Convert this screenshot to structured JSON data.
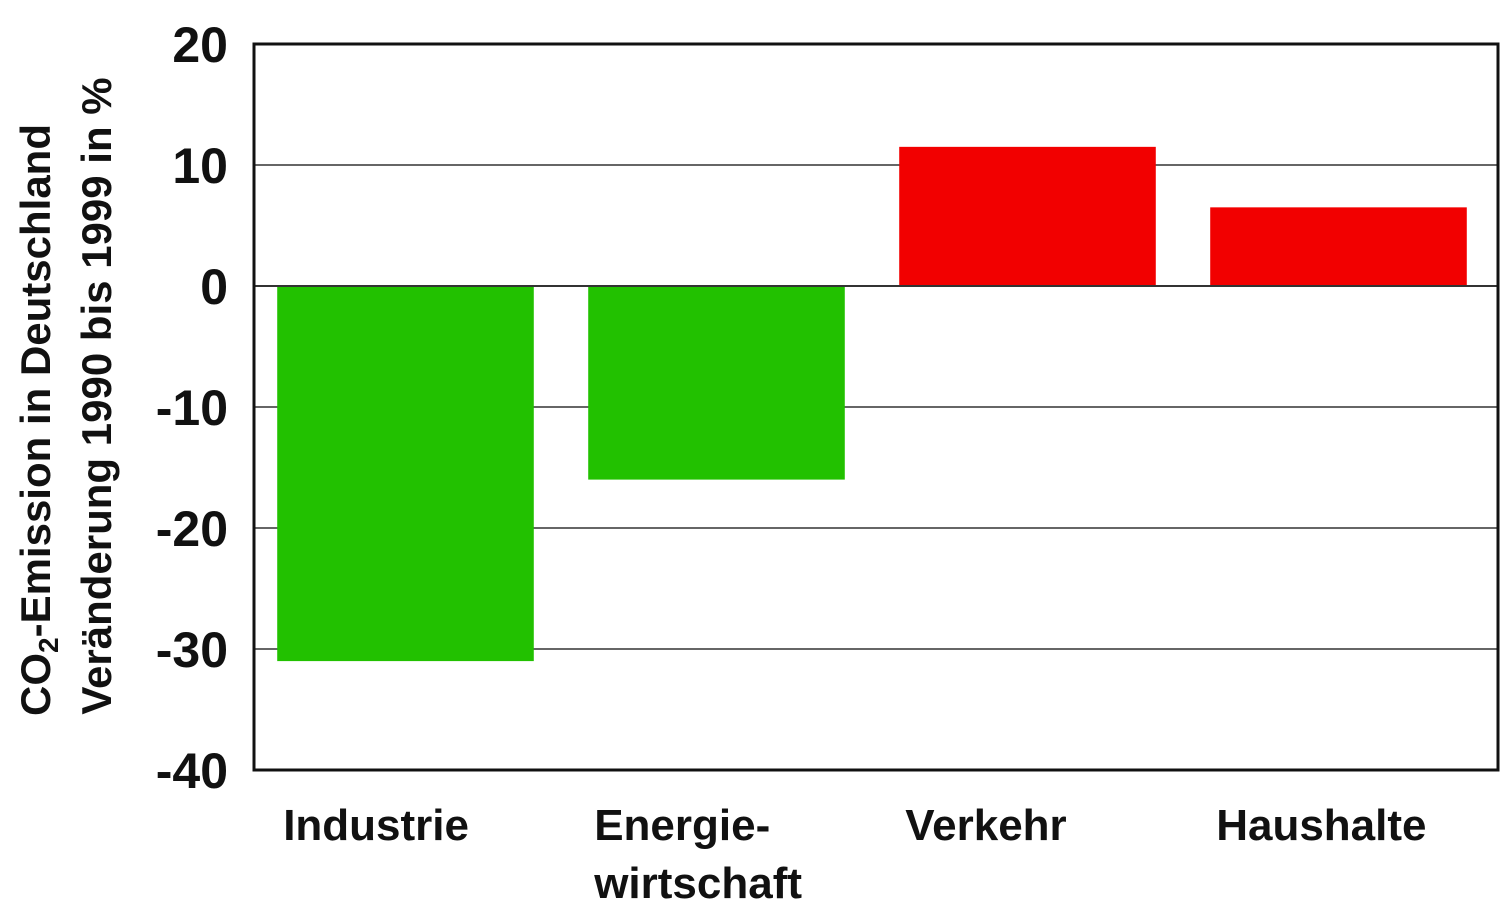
{
  "chart_data": {
    "type": "bar",
    "title": "",
    "ylabel": {
      "line1_prefix": "CO",
      "line1_subscript": "2",
      "line1_suffix": "-Emission in Deutschland",
      "line2": "Veränderung 1990 bis 1999 in %"
    },
    "xlabel": "",
    "ylim": [
      -40,
      20
    ],
    "yticks": [
      20,
      10,
      0,
      -10,
      -20,
      -30,
      -40
    ],
    "grid": true,
    "categories": [
      [
        "Industrie"
      ],
      [
        "Energie-",
        "wirtschaft"
      ],
      [
        "Verkehr"
      ],
      [
        "Haushalte"
      ]
    ],
    "values": [
      -31,
      -16,
      11.5,
      6.5
    ],
    "colors": {
      "negative": "#22c100",
      "positive": "#f20000",
      "gridline": "#333333",
      "axis": "#111111"
    }
  }
}
